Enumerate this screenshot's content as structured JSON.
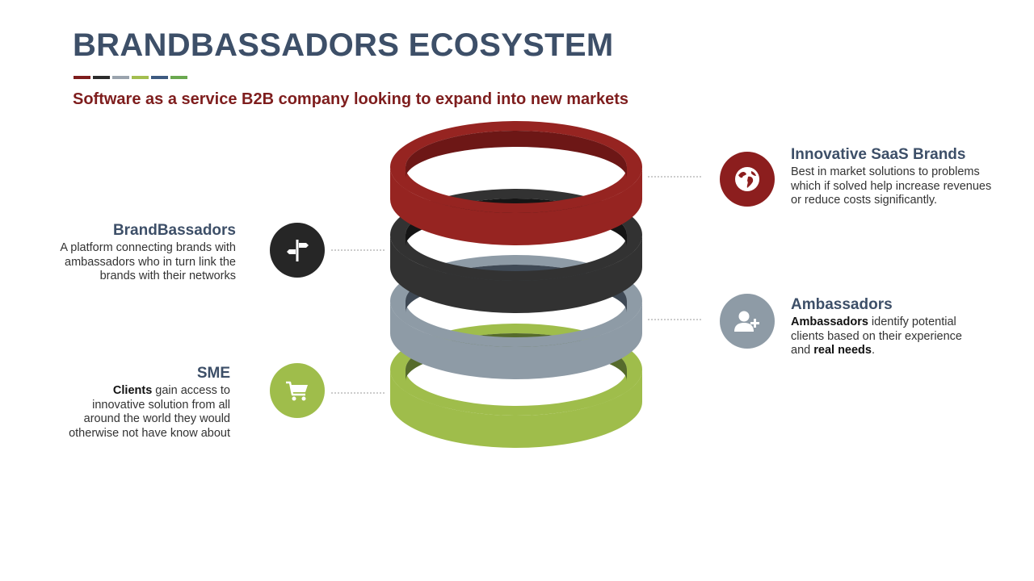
{
  "title": "BRANDBASSADORS ECOSYSTEM",
  "subtitle": "Software as a service B2B company looking to expand into new markets",
  "stripe_colors": [
    "#7e1d1d",
    "#2b2b2b",
    "#9aa3ad",
    "#a3be4f",
    "#3d5a80",
    "#6aa84f"
  ],
  "rings": [
    {
      "color": "#9fbd4b",
      "shade": "#566b2c"
    },
    {
      "color": "#8e9ba6",
      "shade": "#3f4955"
    },
    {
      "color": "#323232",
      "shade": "#151515"
    },
    {
      "color": "#962421",
      "shade": "#6d1716"
    }
  ],
  "items": {
    "saas": {
      "title": "Innovative SaaS Brands",
      "desc": "Best in market solutions to problems which if solved help increase revenues or reduce costs significantly.",
      "icon": "globe-icon",
      "color": "#8c1e1e"
    },
    "brandbassadors": {
      "title": "BrandBassadors",
      "desc": "A platform connecting brands with ambassadors who in turn link the brands with their networks",
      "icon": "signpost-icon",
      "color": "#262626"
    },
    "ambassadors": {
      "title": "Ambassadors",
      "desc_bold1": "Ambassadors",
      "desc_mid": " identify potential clients based on their experience and ",
      "desc_bold2": "real needs",
      "desc_end": ".",
      "icon": "add-user-icon",
      "color": "#8e9ba6"
    },
    "sme": {
      "title": "SME",
      "desc_bold": "Clients",
      "desc_rest": " gain access to innovative solution from all around the world they would otherwise not have know about",
      "icon": "shopping-cart-icon",
      "color": "#9fbd4b"
    }
  }
}
